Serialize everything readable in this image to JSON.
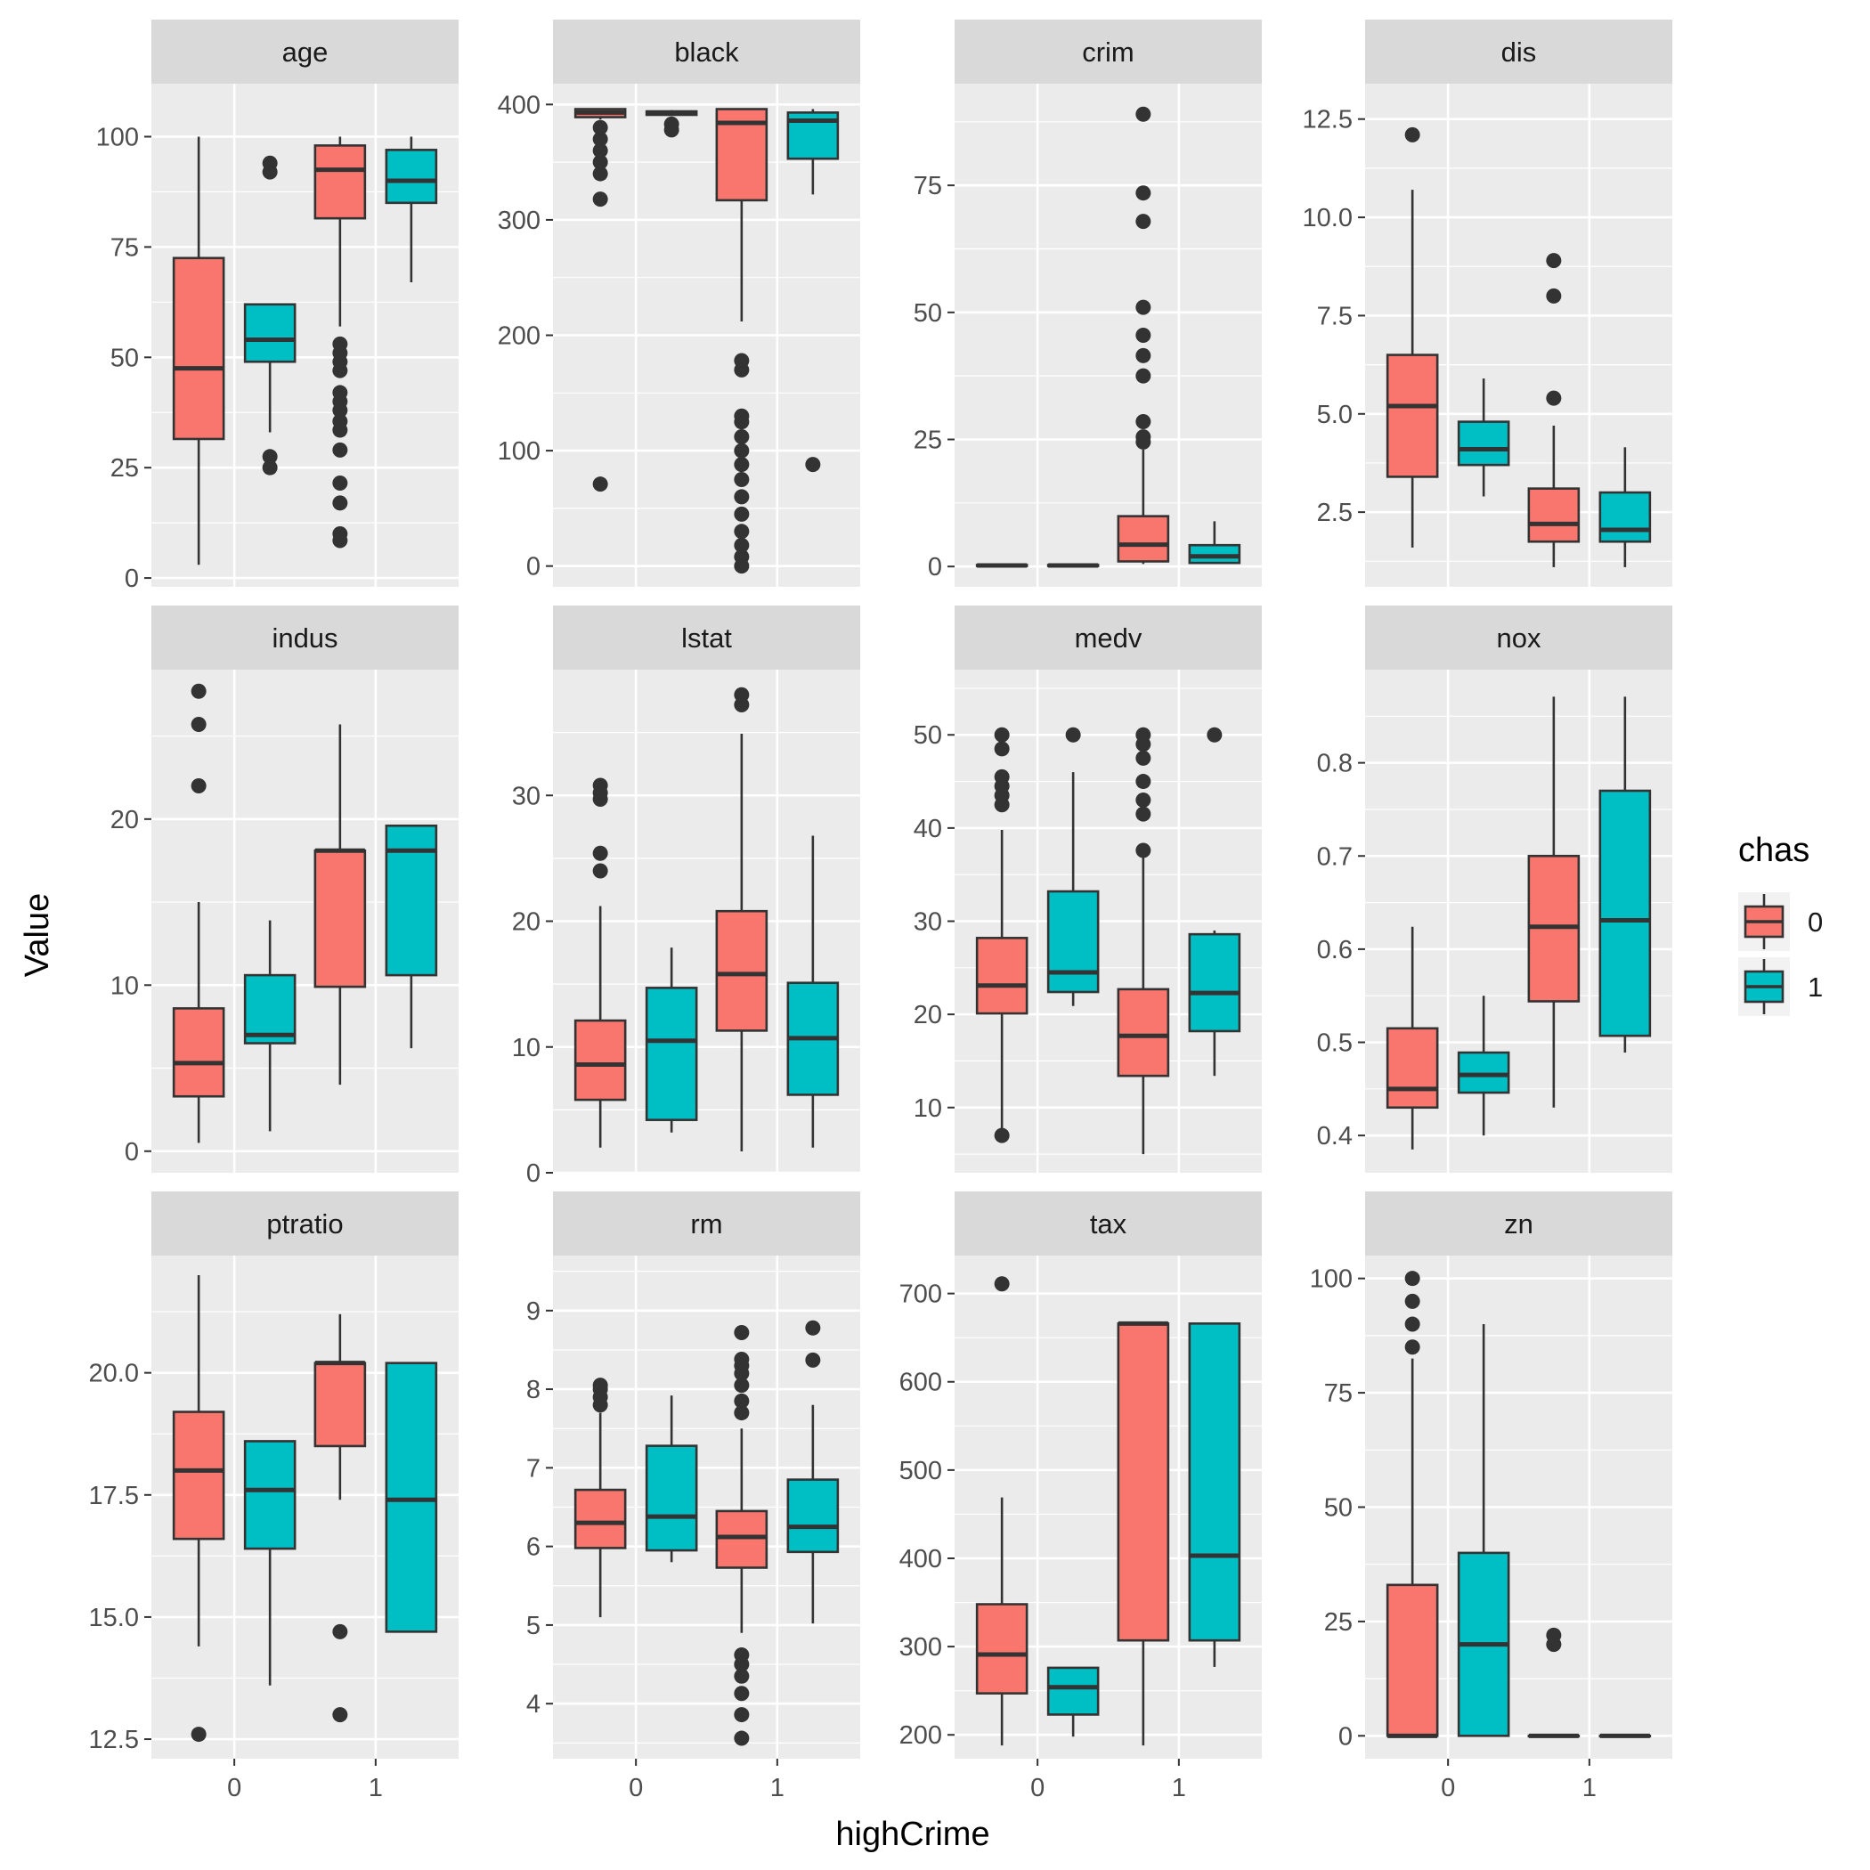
{
  "chart_data": {
    "type": "boxplot",
    "facet_layout": "3 rows x 4 columns, free y scales",
    "xlabel": "highCrime",
    "ylabel": "Value",
    "x_categories": [
      "0",
      "1"
    ],
    "legend": {
      "title": "chas",
      "placement": "right",
      "entries": [
        {
          "label": "0",
          "color": "#F8766D"
        },
        {
          "label": "1",
          "color": "#00BFC4"
        }
      ]
    },
    "colors": {
      "panel_bg": "#EBEBEB",
      "strip_bg": "#D9D9D9",
      "grid": "#FFFFFF",
      "box_line": "#333333"
    },
    "panels": [
      {
        "title": "age",
        "ylim": [
          -2,
          112
        ],
        "ticks": [
          0,
          25,
          50,
          75,
          100
        ],
        "boxes": [
          {
            "x": "0",
            "chas": "0",
            "lower": 3,
            "q1": 31.5,
            "median": 47.5,
            "q3": 72.5,
            "upper": 100,
            "outliers": []
          },
          {
            "x": "0",
            "chas": "1",
            "lower": 33,
            "q1": 49,
            "median": 54,
            "q3": 62,
            "upper": 62,
            "outliers": [
              25,
              27.5,
              92,
              94
            ]
          },
          {
            "x": "1",
            "chas": "0",
            "lower": 57,
            "q1": 81.5,
            "median": 92.5,
            "q3": 98,
            "upper": 100,
            "outliers": [
              8.5,
              10,
              17,
              21.5,
              29,
              33.5,
              35.5,
              38,
              40,
              42,
              47,
              49,
              51,
              53
            ]
          },
          {
            "x": "1",
            "chas": "1",
            "lower": 67,
            "q1": 85,
            "median": 90,
            "q3": 97,
            "upper": 100,
            "outliers": []
          }
        ]
      },
      {
        "title": "black",
        "ylim": [
          -18,
          418
        ],
        "ticks": [
          0,
          100,
          200,
          300,
          400
        ],
        "boxes": [
          {
            "x": "0",
            "chas": "0",
            "lower": 387,
            "q1": 389,
            "median": 393,
            "q3": 396,
            "upper": 396,
            "outliers": [
              71,
              318,
              340,
              350,
              360,
              370,
              380
            ]
          },
          {
            "x": "0",
            "chas": "1",
            "lower": 390,
            "q1": 391,
            "median": 393,
            "q3": 394,
            "upper": 395,
            "outliers": [
              378,
              383
            ]
          },
          {
            "x": "1",
            "chas": "0",
            "lower": 212,
            "q1": 317,
            "median": 384,
            "q3": 396,
            "upper": 396,
            "outliers": [
              0,
              8,
              18,
              30,
              45,
              60,
              75,
              88,
              100,
              112,
              125,
              130,
              170,
              178
            ]
          },
          {
            "x": "1",
            "chas": "1",
            "lower": 322,
            "q1": 353,
            "median": 386,
            "q3": 393,
            "upper": 396,
            "outliers": [
              88
            ]
          }
        ]
      },
      {
        "title": "crim",
        "ylim": [
          -4,
          95
        ],
        "ticks": [
          0,
          25,
          50,
          75
        ],
        "boxes": [
          {
            "x": "0",
            "chas": "0",
            "lower": 0,
            "q1": 0.1,
            "median": 0.2,
            "q3": 0.3,
            "upper": 0.5,
            "outliers": []
          },
          {
            "x": "0",
            "chas": "1",
            "lower": 0,
            "q1": 0.1,
            "median": 0.2,
            "q3": 0.3,
            "upper": 0.5,
            "outliers": []
          },
          {
            "x": "1",
            "chas": "0",
            "lower": 0.5,
            "q1": 1,
            "median": 4.3,
            "q3": 9.9,
            "upper": 23,
            "outliers": [
              24.5,
              25.5,
              28.5,
              37.5,
              41.5,
              45.5,
              51,
              67.9,
              73.5,
              89
            ]
          },
          {
            "x": "1",
            "chas": "1",
            "lower": 0.5,
            "q1": 0.7,
            "median": 2,
            "q3": 4.2,
            "upper": 8.9,
            "outliers": []
          }
        ]
      },
      {
        "title": "dis",
        "ylim": [
          0.6,
          13.4
        ],
        "ticks": [
          2.5,
          5.0,
          7.5,
          10.0,
          12.5
        ],
        "boxes": [
          {
            "x": "0",
            "chas": "0",
            "lower": 1.6,
            "q1": 3.4,
            "median": 5.2,
            "q3": 6.5,
            "upper": 10.7,
            "outliers": [
              12.1
            ]
          },
          {
            "x": "0",
            "chas": "1",
            "lower": 2.9,
            "q1": 3.7,
            "median": 4.1,
            "q3": 4.8,
            "upper": 5.9,
            "outliers": []
          },
          {
            "x": "1",
            "chas": "0",
            "lower": 1.1,
            "q1": 1.75,
            "median": 2.2,
            "q3": 3.1,
            "upper": 4.7,
            "outliers": [
              5.4,
              8,
              8.9
            ]
          },
          {
            "x": "1",
            "chas": "1",
            "lower": 1.1,
            "q1": 1.75,
            "median": 2.05,
            "q3": 3.0,
            "upper": 4.15,
            "outliers": []
          }
        ]
      },
      {
        "title": "indus",
        "ylim": [
          -1.3,
          29
        ],
        "ticks": [
          0,
          10,
          20
        ],
        "boxes": [
          {
            "x": "0",
            "chas": "0",
            "lower": 0.5,
            "q1": 3.3,
            "median": 5.3,
            "q3": 8.6,
            "upper": 15,
            "outliers": [
              22,
              25.7,
              27.7
            ]
          },
          {
            "x": "0",
            "chas": "1",
            "lower": 1.2,
            "q1": 6.5,
            "median": 7,
            "q3": 10.6,
            "upper": 13.9,
            "outliers": []
          },
          {
            "x": "1",
            "chas": "0",
            "lower": 4,
            "q1": 9.9,
            "median": 18.1,
            "q3": 18.1,
            "upper": 25.7,
            "outliers": []
          },
          {
            "x": "1",
            "chas": "1",
            "lower": 6.2,
            "q1": 10.6,
            "median": 18.1,
            "q3": 19.6,
            "upper": 19.6,
            "outliers": []
          }
        ]
      },
      {
        "title": "lstat",
        "ylim": [
          0,
          40
        ],
        "ticks": [
          0,
          10,
          20,
          30
        ],
        "boxes": [
          {
            "x": "0",
            "chas": "0",
            "lower": 2,
            "q1": 5.8,
            "median": 8.6,
            "q3": 12.1,
            "upper": 21.2,
            "outliers": [
              24,
              25.4,
              29.7,
              30.2,
              30.8
            ]
          },
          {
            "x": "0",
            "chas": "1",
            "lower": 3.2,
            "q1": 4.2,
            "median": 10.5,
            "q3": 14.7,
            "upper": 17.9,
            "outliers": []
          },
          {
            "x": "1",
            "chas": "0",
            "lower": 1.7,
            "q1": 11.3,
            "median": 15.8,
            "q3": 20.8,
            "upper": 34.9,
            "outliers": [
              37.2,
              38
            ]
          },
          {
            "x": "1",
            "chas": "1",
            "lower": 2,
            "q1": 6.2,
            "median": 10.7,
            "q3": 15.1,
            "upper": 26.8,
            "outliers": []
          }
        ]
      },
      {
        "title": "medv",
        "ylim": [
          3,
          57
        ],
        "ticks": [
          10,
          20,
          30,
          40,
          50
        ],
        "boxes": [
          {
            "x": "0",
            "chas": "0",
            "lower": 7,
            "q1": 20.1,
            "median": 23.1,
            "q3": 28.2,
            "upper": 39.8,
            "outliers": [
              7,
              42.5,
              43.5,
              44.5,
              45.5,
              48.5,
              50
            ]
          },
          {
            "x": "0",
            "chas": "1",
            "lower": 20.9,
            "q1": 22.4,
            "median": 24.5,
            "q3": 33.2,
            "upper": 46,
            "outliers": [
              50
            ]
          },
          {
            "x": "1",
            "chas": "0",
            "lower": 5,
            "q1": 13.4,
            "median": 17.7,
            "q3": 22.7,
            "upper": 36.8,
            "outliers": [
              37.6,
              41.5,
              43,
              45,
              47.5,
              49,
              50
            ]
          },
          {
            "x": "1",
            "chas": "1",
            "lower": 13.4,
            "q1": 18.2,
            "median": 22.3,
            "q3": 28.6,
            "upper": 29,
            "outliers": [
              50
            ]
          }
        ]
      },
      {
        "title": "nox",
        "ylim": [
          0.36,
          0.9
        ],
        "ticks": [
          0.4,
          0.5,
          0.6,
          0.7,
          0.8
        ],
        "boxes": [
          {
            "x": "0",
            "chas": "0",
            "lower": 0.385,
            "q1": 0.43,
            "median": 0.45,
            "q3": 0.515,
            "upper": 0.624,
            "outliers": []
          },
          {
            "x": "0",
            "chas": "1",
            "lower": 0.4,
            "q1": 0.446,
            "median": 0.465,
            "q3": 0.489,
            "upper": 0.55,
            "outliers": []
          },
          {
            "x": "1",
            "chas": "0",
            "lower": 0.43,
            "q1": 0.544,
            "median": 0.624,
            "q3": 0.7,
            "upper": 0.871,
            "outliers": []
          },
          {
            "x": "1",
            "chas": "1",
            "lower": 0.489,
            "q1": 0.507,
            "median": 0.631,
            "q3": 0.77,
            "upper": 0.871,
            "outliers": []
          }
        ]
      },
      {
        "title": "ptratio",
        "ylim": [
          12.1,
          22.4
        ],
        "ticks": [
          12.5,
          15.0,
          17.5,
          20.0
        ],
        "boxes": [
          {
            "x": "0",
            "chas": "0",
            "lower": 14.4,
            "q1": 16.6,
            "median": 18.0,
            "q3": 19.2,
            "upper": 22.0,
            "outliers": [
              12.6
            ]
          },
          {
            "x": "0",
            "chas": "1",
            "lower": 13.6,
            "q1": 16.4,
            "median": 17.6,
            "q3": 18.6,
            "upper": 18.6,
            "outliers": []
          },
          {
            "x": "1",
            "chas": "0",
            "lower": 17.4,
            "q1": 18.5,
            "median": 20.2,
            "q3": 20.2,
            "upper": 21.2,
            "outliers": [
              13.0,
              14.7
            ]
          },
          {
            "x": "1",
            "chas": "1",
            "lower": 14.7,
            "q1": 14.7,
            "median": 17.4,
            "q3": 20.2,
            "upper": 20.2,
            "outliers": []
          }
        ]
      },
      {
        "title": "rm",
        "ylim": [
          3.3,
          9.7
        ],
        "ticks": [
          4,
          5,
          6,
          7,
          8,
          9
        ],
        "boxes": [
          {
            "x": "0",
            "chas": "0",
            "lower": 5.1,
            "q1": 5.98,
            "median": 6.3,
            "q3": 6.72,
            "upper": 7.7,
            "outliers": [
              7.8,
              7.9,
              8.0,
              8.05
            ]
          },
          {
            "x": "0",
            "chas": "1",
            "lower": 5.8,
            "q1": 5.95,
            "median": 6.38,
            "q3": 7.28,
            "upper": 7.92,
            "outliers": []
          },
          {
            "x": "1",
            "chas": "0",
            "lower": 4.9,
            "q1": 5.73,
            "median": 6.12,
            "q3": 6.45,
            "upper": 7.5,
            "outliers": [
              3.56,
              3.86,
              4.13,
              4.35,
              4.5,
              4.62,
              7.7,
              7.85,
              8.05,
              8.2,
              8.3,
              8.38,
              8.72
            ]
          },
          {
            "x": "1",
            "chas": "1",
            "lower": 5.02,
            "q1": 5.93,
            "median": 6.25,
            "q3": 6.85,
            "upper": 7.8,
            "outliers": [
              8.37,
              8.78
            ]
          }
        ]
      },
      {
        "title": "tax",
        "ylim": [
          173,
          743
        ],
        "ticks": [
          200,
          300,
          400,
          500,
          600,
          700
        ],
        "boxes": [
          {
            "x": "0",
            "chas": "0",
            "lower": 188,
            "q1": 247,
            "median": 291,
            "q3": 348,
            "upper": 469,
            "outliers": [
              711
            ]
          },
          {
            "x": "0",
            "chas": "1",
            "lower": 198,
            "q1": 223,
            "median": 254,
            "q3": 276,
            "upper": 276,
            "outliers": []
          },
          {
            "x": "1",
            "chas": "0",
            "lower": 188,
            "q1": 307,
            "median": 666,
            "q3": 666,
            "upper": 666,
            "outliers": []
          },
          {
            "x": "1",
            "chas": "1",
            "lower": 277,
            "q1": 307,
            "median": 403,
            "q3": 666,
            "upper": 666,
            "outliers": []
          }
        ]
      },
      {
        "title": "zn",
        "ylim": [
          -5,
          105
        ],
        "ticks": [
          0,
          25,
          50,
          75,
          100
        ],
        "boxes": [
          {
            "x": "0",
            "chas": "0",
            "lower": 0,
            "q1": 0,
            "median": 0,
            "q3": 33,
            "upper": 82.5,
            "outliers": [
              85,
              90,
              95,
              100
            ]
          },
          {
            "x": "0",
            "chas": "1",
            "lower": 0,
            "q1": 0,
            "median": 20,
            "q3": 40,
            "upper": 90,
            "outliers": []
          },
          {
            "x": "1",
            "chas": "0",
            "lower": 0,
            "q1": 0,
            "median": 0,
            "q3": 0,
            "upper": 0,
            "outliers": [
              20,
              22
            ]
          },
          {
            "x": "1",
            "chas": "1",
            "lower": 0,
            "q1": 0,
            "median": 0,
            "q3": 0,
            "upper": 0,
            "outliers": []
          }
        ]
      }
    ]
  }
}
